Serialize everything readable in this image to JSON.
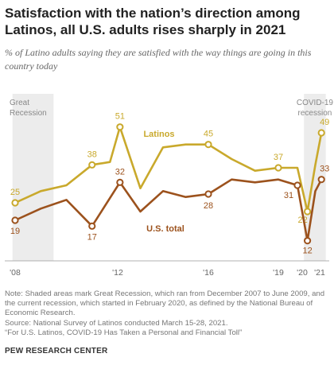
{
  "title": "Satisfaction with the nation’s direction among Latinos, all U.S. adults rises sharply in 2021",
  "subtitle": "% of Latino adults saying they are satisfied with the way things are going in this country today",
  "chart_data": {
    "type": "line",
    "x_ticks": [
      "'08",
      "'12",
      "'16",
      "'19",
      "'20",
      "'21"
    ],
    "shaded_regions": [
      {
        "label": "Great Recession",
        "start": 2007.9,
        "end": 2009.5
      },
      {
        "label": "COVID-19 recession",
        "start": 2020.1,
        "end": 2021.35
      }
    ],
    "series": [
      {
        "name": "Latinos",
        "color": "#c9a92c",
        "line": [
          [
            2008.0,
            25
          ],
          [
            2009.0,
            29
          ],
          [
            2010.0,
            31
          ],
          [
            2011.0,
            38
          ],
          [
            2011.7,
            39
          ],
          [
            2012.1,
            51
          ],
          [
            2013.0,
            30
          ],
          [
            2014.0,
            44
          ],
          [
            2015.0,
            45
          ],
          [
            2016.0,
            45
          ],
          [
            2017.0,
            40
          ],
          [
            2018.0,
            36
          ],
          [
            2019.0,
            37
          ],
          [
            2019.8,
            37
          ],
          [
            2020.3,
            22
          ],
          [
            2020.75,
            38
          ],
          [
            2021.1,
            49
          ]
        ],
        "labeled_points": [
          {
            "x": 2008.0,
            "y": 25,
            "label": "25"
          },
          {
            "x": 2011.0,
            "y": 38,
            "label": "38"
          },
          {
            "x": 2012.1,
            "y": 51,
            "label": "51"
          },
          {
            "x": 2016.0,
            "y": 45,
            "label": "45"
          },
          {
            "x": 2019.0,
            "y": 37,
            "label": "37"
          },
          {
            "x": 2020.3,
            "y": 22,
            "label": "22"
          },
          {
            "x": 2021.1,
            "y": 49,
            "label": "49"
          }
        ]
      },
      {
        "name": "U.S. total",
        "color": "#9c521d",
        "line": [
          [
            2008.0,
            19
          ],
          [
            2009.0,
            23
          ],
          [
            2010.0,
            26
          ],
          [
            2011.0,
            17
          ],
          [
            2012.1,
            32
          ],
          [
            2013.0,
            22
          ],
          [
            2014.0,
            29
          ],
          [
            2015.0,
            27
          ],
          [
            2016.0,
            28
          ],
          [
            2017.0,
            33
          ],
          [
            2018.0,
            32
          ],
          [
            2019.0,
            33
          ],
          [
            2019.8,
            31
          ],
          [
            2020.3,
            12
          ],
          [
            2020.75,
            29
          ],
          [
            2021.1,
            33
          ]
        ],
        "labeled_points": [
          {
            "x": 2008.0,
            "y": 19,
            "label": "19"
          },
          {
            "x": 2011.0,
            "y": 17,
            "label": "17"
          },
          {
            "x": 2012.1,
            "y": 32,
            "label": "32"
          },
          {
            "x": 2016.0,
            "y": 28,
            "label": "28"
          },
          {
            "x": 2019.8,
            "y": 31,
            "label": "31"
          },
          {
            "x": 2020.3,
            "y": 12,
            "label": "12"
          },
          {
            "x": 2021.1,
            "y": 33,
            "label": "33"
          }
        ]
      }
    ],
    "ylim": [
      0,
      60
    ],
    "grid": false
  },
  "notes": [
    "Note: Shaded areas mark Great Recession, which ran from December 2007 to June 2009, and the current recession, which started in February 2020, as defined by the National Bureau of Economic Research.",
    "Source: National Survey of Latinos conducted March 15-28, 2021.",
    "“For U.S. Latinos, COVID-19 Has Taken a Personal and Financial Toll”"
  ],
  "brand": "PEW RESEARCH CENTER"
}
